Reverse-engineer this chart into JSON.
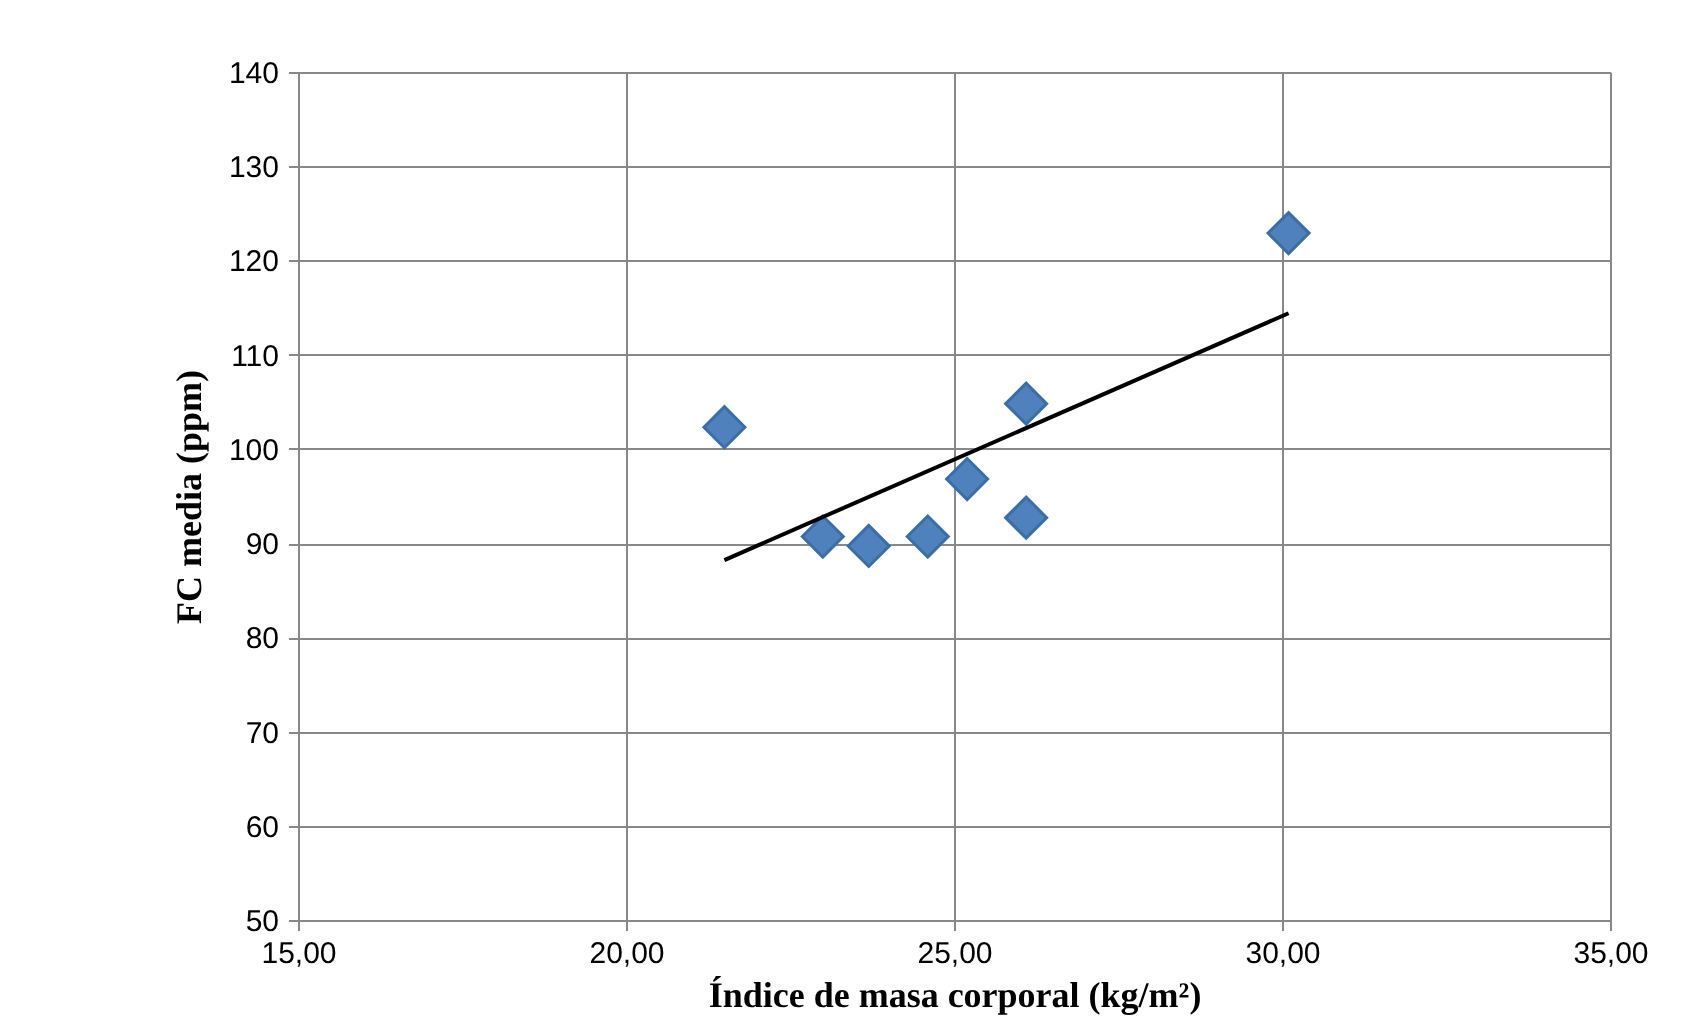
{
  "chart_data": {
    "type": "scatter",
    "xlabel": "Índice de masa corporal (kg/m²)",
    "ylabel": "FC media (ppm)",
    "xlim": [
      15,
      35
    ],
    "ylim": [
      50,
      140
    ],
    "xticks": [
      {
        "value": 15,
        "label": "15,00"
      },
      {
        "value": 20,
        "label": "20,00"
      },
      {
        "value": 25,
        "label": "25,00"
      },
      {
        "value": 30,
        "label": "30,00"
      },
      {
        "value": 35,
        "label": "35,00"
      }
    ],
    "yticks": [
      50,
      60,
      70,
      80,
      90,
      100,
      110,
      120,
      130,
      140
    ],
    "grid": true,
    "marker": "diamond",
    "series": [
      {
        "type": "scatter",
        "color": "#4f81bd",
        "x": [
          21.5,
          23.0,
          23.7,
          24.6,
          25.2,
          26.1,
          26.1,
          30.1
        ],
        "values": [
          102.3,
          90.7,
          89.7,
          90.7,
          96.8,
          104.8,
          92.7,
          122.9
        ]
      },
      {
        "type": "line",
        "color": "#000000",
        "marker": "none",
        "line_style": "solid",
        "x": [
          21.5,
          30.1
        ],
        "values": [
          88.2,
          114.4
        ]
      }
    ]
  }
}
